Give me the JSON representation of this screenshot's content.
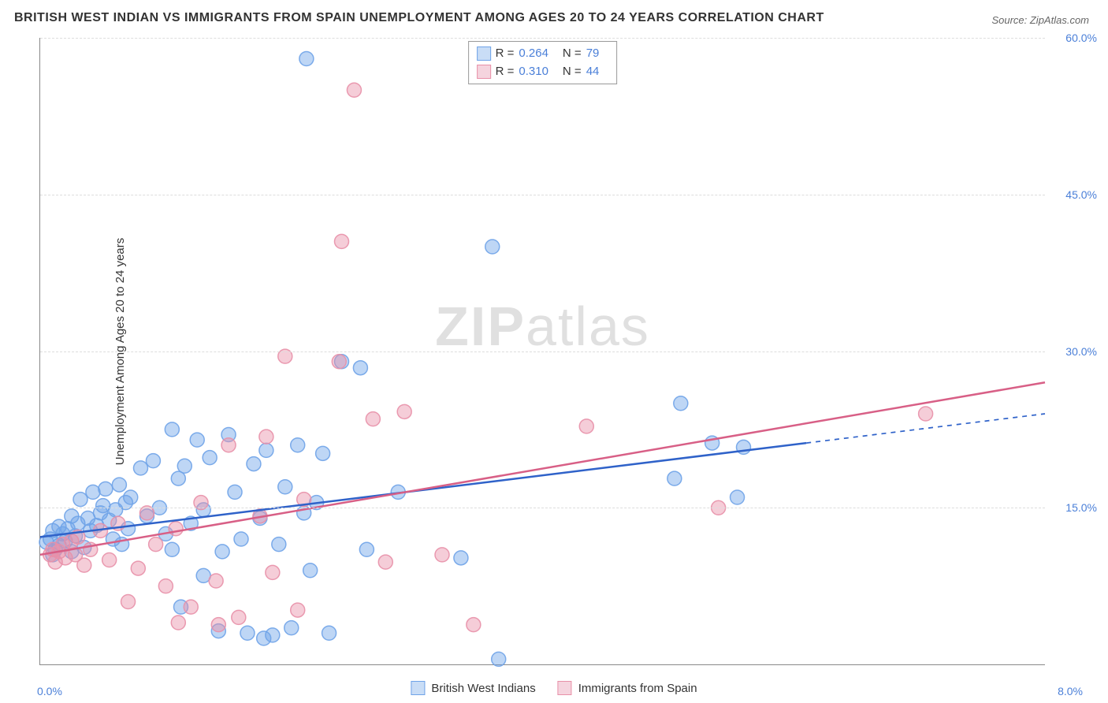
{
  "title": "BRITISH WEST INDIAN VS IMMIGRANTS FROM SPAIN UNEMPLOYMENT AMONG AGES 20 TO 24 YEARS CORRELATION CHART",
  "source_label": "Source: ZipAtlas.com",
  "y_axis_label": "Unemployment Among Ages 20 to 24 years",
  "watermark": {
    "bold": "ZIP",
    "light": "atlas"
  },
  "chart": {
    "type": "scatter",
    "background_color": "#ffffff",
    "grid_color": "#dddddd",
    "axis_color": "#888888",
    "tick_label_color": "#4a7fd8",
    "tick_fontsize": 14,
    "title_fontsize": 16,
    "label_fontsize": 15,
    "xlim": [
      0.0,
      8.0
    ],
    "ylim": [
      0.0,
      60.0
    ],
    "y_ticks": [
      15.0,
      30.0,
      45.0,
      60.0
    ],
    "y_tick_labels": [
      "15.0%",
      "30.0%",
      "45.0%",
      "60.0%"
    ],
    "x_ticks": [
      0.0,
      8.0
    ],
    "x_tick_labels": [
      "0.0%",
      "8.0%"
    ],
    "marker_radius": 9,
    "marker_opacity": 0.45,
    "marker_stroke_opacity": 0.9,
    "line_width": 2.5,
    "series": [
      {
        "name": "British West Indians",
        "color": "#6fa3e8",
        "line_color": "#2f62c9",
        "swatch_bg": "#c9ddf6",
        "swatch_border": "#6fa3e8",
        "r_value": "0.264",
        "n_value": "79",
        "trend": {
          "x1": 0.0,
          "y1": 12.2,
          "x2": 6.1,
          "y2": 21.2,
          "x_dash_to": 8.0,
          "y_dash_to": 24.0
        },
        "points": [
          [
            0.05,
            11.7
          ],
          [
            0.08,
            12.0
          ],
          [
            0.1,
            12.8
          ],
          [
            0.1,
            10.5
          ],
          [
            0.12,
            11.0
          ],
          [
            0.15,
            13.2
          ],
          [
            0.15,
            11.4
          ],
          [
            0.18,
            12.5
          ],
          [
            0.2,
            11.8
          ],
          [
            0.22,
            13.0
          ],
          [
            0.25,
            10.8
          ],
          [
            0.25,
            14.2
          ],
          [
            0.28,
            12.3
          ],
          [
            0.3,
            13.5
          ],
          [
            0.32,
            15.8
          ],
          [
            0.35,
            11.2
          ],
          [
            0.38,
            14.0
          ],
          [
            0.4,
            12.8
          ],
          [
            0.42,
            16.5
          ],
          [
            0.45,
            13.3
          ],
          [
            0.48,
            14.5
          ],
          [
            0.5,
            15.2
          ],
          [
            0.52,
            16.8
          ],
          [
            0.55,
            13.8
          ],
          [
            0.58,
            12.0
          ],
          [
            0.6,
            14.8
          ],
          [
            0.63,
            17.2
          ],
          [
            0.65,
            11.5
          ],
          [
            0.68,
            15.5
          ],
          [
            0.7,
            13.0
          ],
          [
            0.72,
            16.0
          ],
          [
            0.8,
            18.8
          ],
          [
            0.85,
            14.2
          ],
          [
            0.9,
            19.5
          ],
          [
            0.95,
            15.0
          ],
          [
            1.0,
            12.5
          ],
          [
            1.05,
            11.0
          ],
          [
            1.05,
            22.5
          ],
          [
            1.1,
            17.8
          ],
          [
            1.12,
            5.5
          ],
          [
            1.15,
            19.0
          ],
          [
            1.2,
            13.5
          ],
          [
            1.25,
            21.5
          ],
          [
            1.3,
            14.8
          ],
          [
            1.3,
            8.5
          ],
          [
            1.35,
            19.8
          ],
          [
            1.42,
            3.2
          ],
          [
            1.45,
            10.8
          ],
          [
            1.5,
            22.0
          ],
          [
            1.55,
            16.5
          ],
          [
            1.6,
            12.0
          ],
          [
            1.65,
            3.0
          ],
          [
            1.7,
            19.2
          ],
          [
            1.75,
            14.0
          ],
          [
            1.78,
            2.5
          ],
          [
            1.8,
            20.5
          ],
          [
            1.85,
            2.8
          ],
          [
            1.9,
            11.5
          ],
          [
            1.95,
            17.0
          ],
          [
            2.0,
            3.5
          ],
          [
            2.05,
            21.0
          ],
          [
            2.1,
            14.5
          ],
          [
            2.12,
            58.0
          ],
          [
            2.15,
            9.0
          ],
          [
            2.2,
            15.5
          ],
          [
            2.25,
            20.2
          ],
          [
            2.3,
            3.0
          ],
          [
            2.4,
            29.0
          ],
          [
            2.55,
            28.4
          ],
          [
            2.6,
            11.0
          ],
          [
            2.85,
            16.5
          ],
          [
            3.35,
            10.2
          ],
          [
            3.6,
            40.0
          ],
          [
            3.65,
            0.5
          ],
          [
            5.05,
            17.8
          ],
          [
            5.1,
            25.0
          ],
          [
            5.35,
            21.2
          ],
          [
            5.55,
            16.0
          ],
          [
            5.6,
            20.8
          ]
        ]
      },
      {
        "name": "Immigrants from Spain",
        "color": "#e890a8",
        "line_color": "#d85f86",
        "swatch_bg": "#f5d4de",
        "swatch_border": "#e890a8",
        "r_value": "0.310",
        "n_value": "44",
        "trend": {
          "x1": 0.0,
          "y1": 10.5,
          "x2": 8.0,
          "y2": 27.0,
          "x_dash_to": null,
          "y_dash_to": null
        },
        "points": [
          [
            0.08,
            10.5
          ],
          [
            0.1,
            11.0
          ],
          [
            0.12,
            9.8
          ],
          [
            0.15,
            10.8
          ],
          [
            0.18,
            11.5
          ],
          [
            0.2,
            10.2
          ],
          [
            0.25,
            11.8
          ],
          [
            0.28,
            10.5
          ],
          [
            0.3,
            12.2
          ],
          [
            0.35,
            9.5
          ],
          [
            0.4,
            11.0
          ],
          [
            0.48,
            12.8
          ],
          [
            0.55,
            10.0
          ],
          [
            0.62,
            13.5
          ],
          [
            0.7,
            6.0
          ],
          [
            0.78,
            9.2
          ],
          [
            0.85,
            14.5
          ],
          [
            0.92,
            11.5
          ],
          [
            1.0,
            7.5
          ],
          [
            1.08,
            13.0
          ],
          [
            1.1,
            4.0
          ],
          [
            1.2,
            5.5
          ],
          [
            1.28,
            15.5
          ],
          [
            1.4,
            8.0
          ],
          [
            1.42,
            3.8
          ],
          [
            1.5,
            21.0
          ],
          [
            1.58,
            4.5
          ],
          [
            1.75,
            14.2
          ],
          [
            1.8,
            21.8
          ],
          [
            1.85,
            8.8
          ],
          [
            1.95,
            29.5
          ],
          [
            2.05,
            5.2
          ],
          [
            2.1,
            15.8
          ],
          [
            2.38,
            29.0
          ],
          [
            2.4,
            40.5
          ],
          [
            2.5,
            55.0
          ],
          [
            2.65,
            23.5
          ],
          [
            2.75,
            9.8
          ],
          [
            2.9,
            24.2
          ],
          [
            3.2,
            10.5
          ],
          [
            3.45,
            3.8
          ],
          [
            4.35,
            22.8
          ],
          [
            5.4,
            15.0
          ],
          [
            7.05,
            24.0
          ]
        ]
      }
    ]
  },
  "legend": {
    "r_label": "R =",
    "n_label": "N ="
  }
}
